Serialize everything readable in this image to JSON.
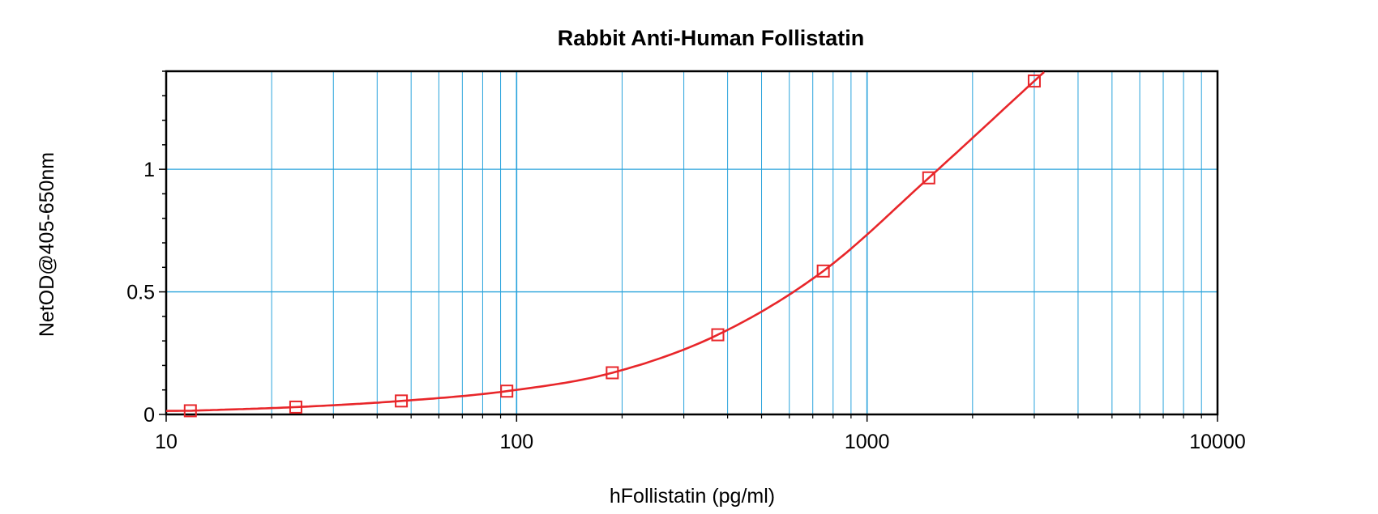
{
  "chart_data": {
    "type": "scatter",
    "title": "Rabbit Anti-Human Follistatin",
    "xlabel": "hFollistatin (pg/ml)",
    "ylabel": "NetOD@405-650nm",
    "x_scale": "log",
    "xlim": [
      10,
      10000
    ],
    "ylim": [
      0,
      1.4
    ],
    "x_ticks": [
      10,
      100,
      1000,
      10000
    ],
    "x_tick_labels": [
      "10",
      "100",
      "1000",
      "10000"
    ],
    "y_ticks": [
      0,
      0.5,
      1
    ],
    "y_tick_labels": [
      "0",
      "0.5",
      "1"
    ],
    "grid": true,
    "series": [
      {
        "marker": "square",
        "color": "#e8262a",
        "x": [
          11.72,
          23.44,
          46.88,
          93.75,
          187.5,
          375,
          750,
          1500,
          3000
        ],
        "y": [
          0.015,
          0.03,
          0.055,
          0.095,
          0.17,
          0.325,
          0.585,
          0.965,
          1.36
        ]
      }
    ],
    "fit_curve": {
      "type": "line",
      "color": "#e8262a"
    },
    "colors": {
      "grid": "#29a3dc",
      "frame": "#000000",
      "series": "#e8262a"
    }
  }
}
